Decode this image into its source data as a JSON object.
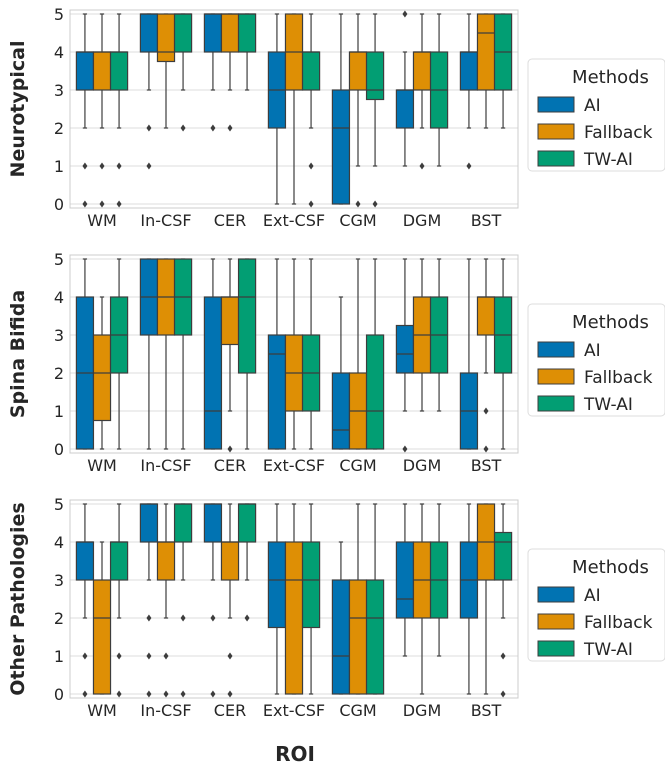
{
  "figure": {
    "xlabel": "ROI",
    "legend_title": "Methods"
  },
  "chart_data": [
    {
      "type": "box",
      "ylabel": "Neurotypical",
      "ylim": [
        0,
        5
      ],
      "yticks": [
        0,
        1,
        2,
        3,
        4,
        5
      ],
      "grid": true,
      "legend_position": "right",
      "categories": [
        "WM",
        "In-CSF",
        "CER",
        "Ext-CSF",
        "CGM",
        "DGM",
        "BST"
      ],
      "series": [
        {
          "name": "AI",
          "color": "#0173b2",
          "boxes": [
            {
              "min": 2,
              "q1": 3,
              "median": 4,
              "q3": 4,
              "max": 5,
              "outliers": [
                1,
                0
              ]
            },
            {
              "min": 3,
              "q1": 4,
              "median": 5,
              "q3": 5,
              "max": 5,
              "outliers": [
                2,
                1
              ]
            },
            {
              "min": 3,
              "q1": 4,
              "median": 5,
              "q3": 5,
              "max": 5,
              "outliers": [
                2
              ]
            },
            {
              "min": 0,
              "q1": 2,
              "median": 3,
              "q3": 4,
              "max": 5,
              "outliers": []
            },
            {
              "min": 0,
              "q1": 0,
              "median": 2,
              "q3": 3,
              "max": 5,
              "outliers": []
            },
            {
              "min": 1,
              "q1": 2,
              "median": 3,
              "q3": 3,
              "max": 4,
              "outliers": [
                5
              ]
            },
            {
              "min": 2,
              "q1": 3,
              "median": 4,
              "q3": 4,
              "max": 5,
              "outliers": [
                1
              ]
            }
          ]
        },
        {
          "name": "Fallback",
          "color": "#de8f05",
          "boxes": [
            {
              "min": 2,
              "q1": 3,
              "median": 4,
              "q3": 4,
              "max": 5,
              "outliers": [
                1,
                0
              ]
            },
            {
              "min": 2,
              "q1": 3.75,
              "median": 4,
              "q3": 5,
              "max": 5,
              "outliers": []
            },
            {
              "min": 3,
              "q1": 4,
              "median": 5,
              "q3": 5,
              "max": 5,
              "outliers": [
                2
              ]
            },
            {
              "min": 0,
              "q1": 3,
              "median": 4,
              "q3": 5,
              "max": 5,
              "outliers": []
            },
            {
              "min": 1,
              "q1": 3,
              "median": 4,
              "q3": 4,
              "max": 5,
              "outliers": [
                0
              ]
            },
            {
              "min": 2,
              "q1": 3,
              "median": 4,
              "q3": 4,
              "max": 5,
              "outliers": [
                1
              ]
            },
            {
              "min": 2,
              "q1": 3,
              "median": 4.5,
              "q3": 5,
              "max": 5,
              "outliers": []
            }
          ]
        },
        {
          "name": "TW-AI",
          "color": "#029e73",
          "boxes": [
            {
              "min": 2,
              "q1": 3,
              "median": 4,
              "q3": 4,
              "max": 5,
              "outliers": [
                1,
                0
              ]
            },
            {
              "min": 3,
              "q1": 4,
              "median": 5,
              "q3": 5,
              "max": 5,
              "outliers": [
                2
              ]
            },
            {
              "min": 3,
              "q1": 4,
              "median": 5,
              "q3": 5,
              "max": 5,
              "outliers": []
            },
            {
              "min": 2,
              "q1": 3,
              "median": 4,
              "q3": 4,
              "max": 5,
              "outliers": [
                1,
                0
              ]
            },
            {
              "min": 1,
              "q1": 2.75,
              "median": 3,
              "q3": 4,
              "max": 5,
              "outliers": [
                0
              ]
            },
            {
              "min": 1,
              "q1": 2,
              "median": 3,
              "q3": 4,
              "max": 5,
              "outliers": []
            },
            {
              "min": 2,
              "q1": 3,
              "median": 4,
              "q3": 5,
              "max": 5,
              "outliers": []
            }
          ]
        }
      ]
    },
    {
      "type": "box",
      "ylabel": "Spina Bifida",
      "ylim": [
        0,
        5
      ],
      "yticks": [
        0,
        1,
        2,
        3,
        4,
        5
      ],
      "grid": true,
      "legend_position": "right",
      "categories": [
        "WM",
        "In-CSF",
        "CER",
        "Ext-CSF",
        "CGM",
        "DGM",
        "BST"
      ],
      "series": [
        {
          "name": "AI",
          "color": "#0173b2",
          "boxes": [
            {
              "min": 0,
              "q1": 0,
              "median": 2,
              "q3": 4,
              "max": 5,
              "outliers": []
            },
            {
              "min": 0,
              "q1": 3,
              "median": 4,
              "q3": 5,
              "max": 5,
              "outliers": []
            },
            {
              "min": 0,
              "q1": 0,
              "median": 1,
              "q3": 4,
              "max": 5,
              "outliers": []
            },
            {
              "min": 0,
              "q1": 0,
              "median": 2.5,
              "q3": 3,
              "max": 5,
              "outliers": []
            },
            {
              "min": 0,
              "q1": 0,
              "median": 0.5,
              "q3": 2,
              "max": 4,
              "outliers": []
            },
            {
              "min": 1,
              "q1": 2,
              "median": 2.5,
              "q3": 3.25,
              "max": 5,
              "outliers": [
                0
              ]
            },
            {
              "min": 0,
              "q1": 0,
              "median": 1,
              "q3": 2,
              "max": 5,
              "outliers": []
            }
          ]
        },
        {
          "name": "Fallback",
          "color": "#de8f05",
          "boxes": [
            {
              "min": 0,
              "q1": 0.75,
              "median": 2,
              "q3": 3,
              "max": 4,
              "outliers": []
            },
            {
              "min": 0,
              "q1": 3,
              "median": 4,
              "q3": 5,
              "max": 5,
              "outliers": []
            },
            {
              "min": 1,
              "q1": 2.75,
              "median": 4,
              "q3": 4,
              "max": 5,
              "outliers": [
                0
              ]
            },
            {
              "min": 0,
              "q1": 1,
              "median": 2,
              "q3": 3,
              "max": 5,
              "outliers": []
            },
            {
              "min": 0,
              "q1": 0,
              "median": 1,
              "q3": 2,
              "max": 5,
              "outliers": []
            },
            {
              "min": 1,
              "q1": 2,
              "median": 3,
              "q3": 4,
              "max": 5,
              "outliers": []
            },
            {
              "min": 2,
              "q1": 3,
              "median": 4,
              "q3": 4,
              "max": 5,
              "outliers": [
                1,
                0
              ]
            }
          ]
        },
        {
          "name": "TW-AI",
          "color": "#029e73",
          "boxes": [
            {
              "min": 0,
              "q1": 2,
              "median": 3,
              "q3": 4,
              "max": 5,
              "outliers": []
            },
            {
              "min": 0,
              "q1": 3,
              "median": 4,
              "q3": 5,
              "max": 5,
              "outliers": []
            },
            {
              "min": 0,
              "q1": 2,
              "median": 4,
              "q3": 5,
              "max": 5,
              "outliers": []
            },
            {
              "min": 0,
              "q1": 1,
              "median": 2,
              "q3": 3,
              "max": 5,
              "outliers": []
            },
            {
              "min": 0,
              "q1": 0,
              "median": 1,
              "q3": 3,
              "max": 5,
              "outliers": []
            },
            {
              "min": 1,
              "q1": 2,
              "median": 3,
              "q3": 4,
              "max": 5,
              "outliers": []
            },
            {
              "min": 0,
              "q1": 2,
              "median": 3,
              "q3": 4,
              "max": 5,
              "outliers": []
            }
          ]
        }
      ]
    },
    {
      "type": "box",
      "ylabel": "Other Pathologies",
      "ylim": [
        0,
        5
      ],
      "yticks": [
        0,
        1,
        2,
        3,
        4,
        5
      ],
      "grid": true,
      "legend_position": "right",
      "categories": [
        "WM",
        "In-CSF",
        "CER",
        "Ext-CSF",
        "CGM",
        "DGM",
        "BST"
      ],
      "series": [
        {
          "name": "AI",
          "color": "#0173b2",
          "boxes": [
            {
              "min": 2,
              "q1": 3,
              "median": 4,
              "q3": 4,
              "max": 5,
              "outliers": [
                1,
                0
              ]
            },
            {
              "min": 3,
              "q1": 4,
              "median": 5,
              "q3": 5,
              "max": 5,
              "outliers": [
                2,
                1,
                0
              ]
            },
            {
              "min": 3,
              "q1": 4,
              "median": 5,
              "q3": 5,
              "max": 5,
              "outliers": [
                2,
                0
              ]
            },
            {
              "min": 0,
              "q1": 1.75,
              "median": 3,
              "q3": 4,
              "max": 5,
              "outliers": []
            },
            {
              "min": 0,
              "q1": 0,
              "median": 1,
              "q3": 3,
              "max": 4,
              "outliers": []
            },
            {
              "min": 1,
              "q1": 2,
              "median": 2.5,
              "q3": 4,
              "max": 5,
              "outliers": []
            },
            {
              "min": 0,
              "q1": 2,
              "median": 3,
              "q3": 4,
              "max": 5,
              "outliers": []
            }
          ]
        },
        {
          "name": "Fallback",
          "color": "#de8f05",
          "boxes": [
            {
              "min": 0,
              "q1": 0,
              "median": 2,
              "q3": 3,
              "max": 4,
              "outliers": []
            },
            {
              "min": 2,
              "q1": 3,
              "median": 4,
              "q3": 4,
              "max": 5,
              "outliers": [
                1,
                0
              ]
            },
            {
              "min": 2,
              "q1": 3,
              "median": 4,
              "q3": 4,
              "max": 5,
              "outliers": [
                1,
                0
              ]
            },
            {
              "min": 0,
              "q1": 0,
              "median": 3,
              "q3": 4,
              "max": 5,
              "outliers": []
            },
            {
              "min": 0,
              "q1": 0,
              "median": 2,
              "q3": 3,
              "max": 5,
              "outliers": []
            },
            {
              "min": 0,
              "q1": 2,
              "median": 3,
              "q3": 4,
              "max": 5,
              "outliers": []
            },
            {
              "min": 0,
              "q1": 3,
              "median": 4,
              "q3": 5,
              "max": 5,
              "outliers": []
            }
          ]
        },
        {
          "name": "TW-AI",
          "color": "#029e73",
          "boxes": [
            {
              "min": 2,
              "q1": 3,
              "median": 4,
              "q3": 4,
              "max": 5,
              "outliers": [
                1,
                0
              ]
            },
            {
              "min": 3,
              "q1": 4,
              "median": 5,
              "q3": 5,
              "max": 5,
              "outliers": [
                2,
                0
              ]
            },
            {
              "min": 3,
              "q1": 4,
              "median": 5,
              "q3": 5,
              "max": 5,
              "outliers": [
                2
              ]
            },
            {
              "min": 0,
              "q1": 1.75,
              "median": 3,
              "q3": 4,
              "max": 5,
              "outliers": []
            },
            {
              "min": 0,
              "q1": 0,
              "median": 2,
              "q3": 3,
              "max": 5,
              "outliers": []
            },
            {
              "min": 1,
              "q1": 2,
              "median": 3,
              "q3": 4,
              "max": 5,
              "outliers": []
            },
            {
              "min": 2,
              "q1": 3,
              "median": 4,
              "q3": 4.25,
              "max": 5,
              "outliers": [
                1,
                0
              ]
            }
          ]
        }
      ]
    }
  ]
}
